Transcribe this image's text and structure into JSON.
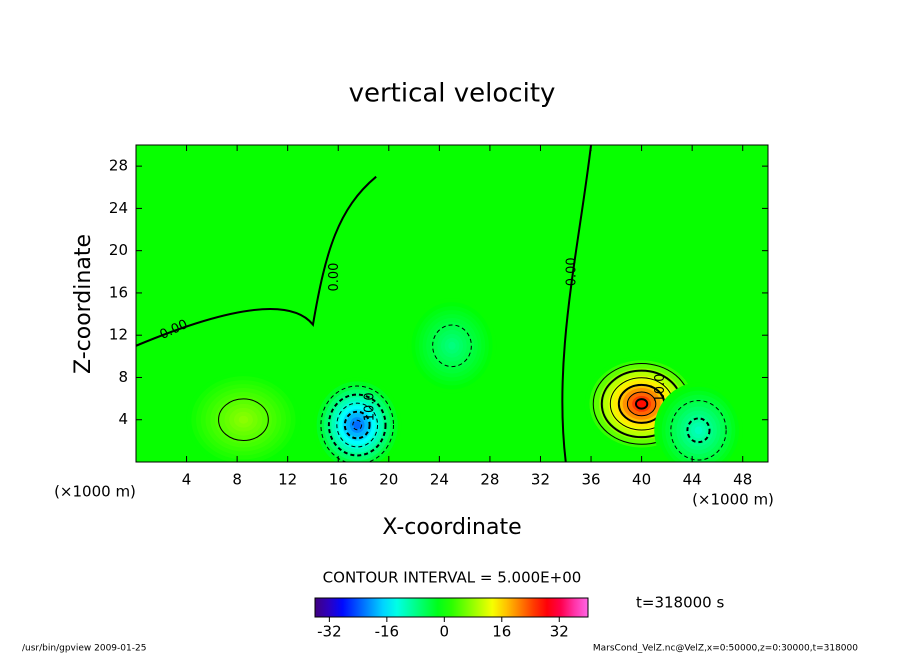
{
  "chart_data": {
    "type": "contour",
    "title": "vertical velocity",
    "xlabel": "X-coordinate",
    "ylabel": "Z-coordinate",
    "x_unit": "(×1000 m)",
    "y_unit": "(×1000 m)",
    "xlim": [
      0,
      50
    ],
    "xticks": [
      4,
      8,
      12,
      16,
      20,
      24,
      28,
      32,
      36,
      40,
      44,
      48
    ],
    "ylim": [
      0,
      30
    ],
    "yticks": [
      4,
      8,
      12,
      16,
      20,
      24,
      28
    ],
    "extrema": [
      {
        "x": 40,
        "y": 5.5,
        "value": 30
      },
      {
        "x": 17.5,
        "y": 3.5,
        "value": -25
      },
      {
        "x": 25,
        "y": 11,
        "value": -8
      },
      {
        "x": 44.5,
        "y": 3,
        "value": -12
      },
      {
        "x": 8.5,
        "y": 4,
        "value": 8
      }
    ],
    "contour_labels": [
      "0.00",
      "0.00",
      "0.00",
      "-10.0",
      "10.0"
    ],
    "contour_interval": "CONTOUR INTERVAL = 5.000E+00",
    "time": "t=318000 s",
    "colorbar": {
      "lim": [
        -36,
        40
      ],
      "ticks": [
        -32,
        -16,
        0,
        16,
        32
      ]
    },
    "footer_left": "/usr/bin/gpview  2009-01-25",
    "footer_right": "MarsCond_VelZ.nc@VelZ,x=0:50000,z=0:30000,t=318000"
  }
}
